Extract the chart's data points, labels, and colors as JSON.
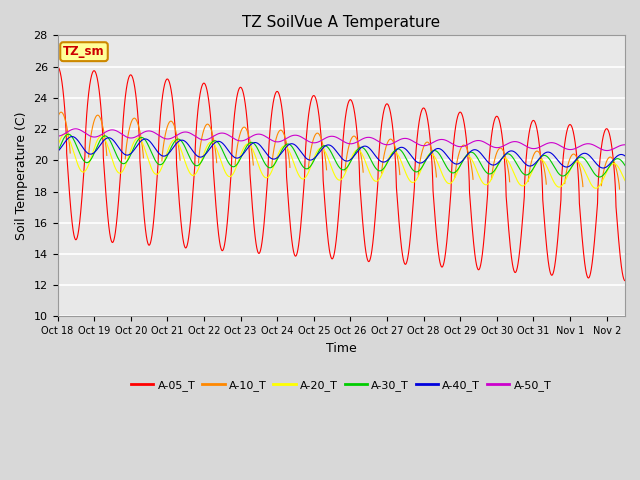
{
  "title": "TZ SoilVue A Temperature",
  "xlabel": "Time",
  "ylabel": "Soil Temperature (C)",
  "ylim": [
    10,
    28
  ],
  "tick_labels": [
    "Oct 18",
    "Oct 19",
    "Oct 20",
    "Oct 21",
    "Oct 22",
    "Oct 23",
    "Oct 24",
    "Oct 25",
    "Oct 26",
    "Oct 27",
    "Oct 28",
    "Oct 29",
    "Oct 30",
    "Oct 31",
    "Nov 1",
    "Nov 2"
  ],
  "legend_labels": [
    "A-05_T",
    "A-10_T",
    "A-20_T",
    "A-30_T",
    "A-40_T",
    "A-50_T"
  ],
  "colors": [
    "#ff0000",
    "#ff8800",
    "#ffff00",
    "#00cc00",
    "#0000dd",
    "#cc00cc"
  ],
  "figure_bg": "#d8d8d8",
  "plot_bg": "#e8e8e8",
  "annotation_text": "TZ_sm",
  "annotation_fg": "#cc0000",
  "annotation_bg": "#ffff99",
  "annotation_border": "#cc8800",
  "yticks": [
    10,
    12,
    14,
    16,
    18,
    20,
    22,
    24,
    26,
    28
  ],
  "n_days": 15.5,
  "points_per_day": 240
}
